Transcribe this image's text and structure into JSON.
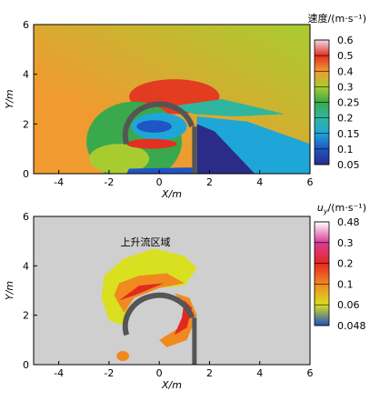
{
  "chart_data": [
    {
      "type": "contour",
      "xlabel": "X/m",
      "ylabel": "Y/m",
      "xlim": [
        -5,
        6
      ],
      "ylim": [
        0,
        6
      ],
      "xticks": [
        -4,
        -2,
        0,
        2,
        4,
        6
      ],
      "yticks": [
        0,
        2,
        4,
        6
      ],
      "colorbar": {
        "title": "速度/(m·s⁻¹)",
        "ticks": [
          0.05,
          0.1,
          0.15,
          0.2,
          0.25,
          0.3,
          0.4,
          0.5,
          0.6
        ],
        "colors": [
          "#2a2c88",
          "#1f55c4",
          "#1fa6d8",
          "#2fb6a0",
          "#3aa84c",
          "#a8cc30",
          "#f09a30",
          "#e33020",
          "#f0d8e8"
        ]
      }
    },
    {
      "type": "contour",
      "xlabel": "X/m",
      "ylabel": "Y/m",
      "annotation": "上升流区域",
      "xlim": [
        -5,
        6
      ],
      "ylim": [
        0,
        6
      ],
      "xticks": [
        -4,
        -2,
        0,
        2,
        4,
        6
      ],
      "yticks": [
        0,
        2,
        4,
        6
      ],
      "colorbar": {
        "title": {
          "symbol": "u",
          "subscript": "y",
          "unit": "/(m·s⁻¹)"
        },
        "ticks": [
          0.048,
          0.06,
          0.1,
          0.2,
          0.3,
          0.48
        ],
        "colors": [
          "#2050c0",
          "#d8e020",
          "#f08a20",
          "#e42820",
          "#d83c98",
          "#ffffff"
        ]
      }
    }
  ]
}
